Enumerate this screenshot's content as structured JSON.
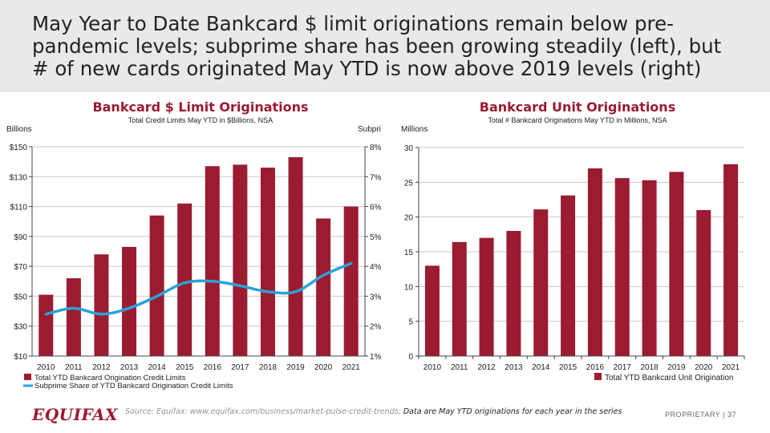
{
  "header": {
    "title": "May Year to Date Bankcard $ limit originations remain below pre-pandemic levels; subprime share has been growing steadily (left), but # of new cards originated May YTD is now above 2019 levels (right)"
  },
  "colors": {
    "bar": "#9b1b30",
    "line": "#2aa2d6",
    "grid": "#c8c8c8"
  },
  "chart_data": [
    {
      "type": "bar",
      "title": "Bankcard $ Limit Originations",
      "subtitle": "Total Credit Limits May YTD in $Billions, NSA",
      "ylabel": "Billions",
      "y2label": "Subpri",
      "categories": [
        "2010",
        "2011",
        "2012",
        "2013",
        "2014",
        "2015",
        "2016",
        "2017",
        "2018",
        "2019",
        "2020",
        "2021"
      ],
      "ylim": [
        10,
        150
      ],
      "yticks": [
        10,
        30,
        50,
        70,
        90,
        110,
        130,
        150
      ],
      "ytick_labels": [
        "$10",
        "$30",
        "$50",
        "$70",
        "$90",
        "$110",
        "$130",
        "$150"
      ],
      "y2lim": [
        1,
        8
      ],
      "y2ticks": [
        1,
        2,
        3,
        4,
        5,
        6,
        7,
        8
      ],
      "y2tick_labels": [
        "1%",
        "2%",
        "3%",
        "4%",
        "5%",
        "6%",
        "7%",
        "8%"
      ],
      "series": [
        {
          "name": "Total YTD Bankcard Origination Credit Limits",
          "type": "bar",
          "axis": "left",
          "values": [
            51,
            62,
            78,
            83,
            104,
            112,
            137,
            138,
            136,
            143,
            102,
            110
          ]
        },
        {
          "name": "Subprime Share of  YTD Bankcard Origination Credit Limits",
          "type": "line",
          "axis": "right",
          "values": [
            2.4,
            2.6,
            2.4,
            2.6,
            3.0,
            3.45,
            3.5,
            3.35,
            3.15,
            3.15,
            3.7,
            4.1
          ]
        }
      ],
      "grid": true
    },
    {
      "type": "bar",
      "title": "Bankcard Unit Originations",
      "subtitle": "Total # Bankcard Originations May YTD in Millions, NSA",
      "ylabel": "Millions",
      "categories": [
        "2010",
        "2011",
        "2012",
        "2013",
        "2014",
        "2015",
        "2016",
        "2017",
        "2018",
        "2019",
        "2020",
        "2021"
      ],
      "ylim": [
        0,
        30
      ],
      "yticks": [
        0,
        5,
        10,
        15,
        20,
        25,
        30
      ],
      "ytick_labels": [
        "0",
        "5",
        "10",
        "15",
        "20",
        "25",
        "30"
      ],
      "series": [
        {
          "name": "Total YTD Bankcard Unit Origination",
          "type": "bar",
          "values": [
            13,
            16.4,
            17,
            18,
            21.1,
            23.1,
            27,
            25.6,
            25.3,
            26.5,
            21,
            27.6
          ]
        }
      ],
      "grid": true
    }
  ],
  "footer": {
    "logo": "EQUIFAX",
    "source": "Source: Equifax: www.equifax.com/business/market-pulse-credit-trends;",
    "note": "Data are May YTD originations for each year in the series",
    "proprietary": "PROPRIETARY  |  37"
  }
}
